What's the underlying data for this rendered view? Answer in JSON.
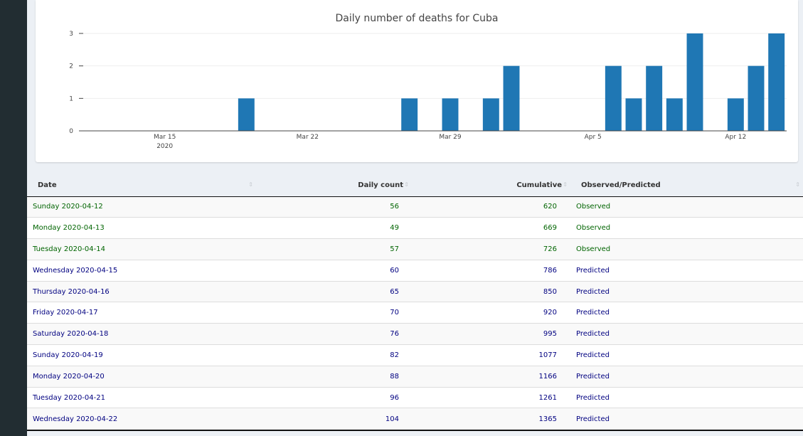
{
  "chart_data": {
    "type": "bar",
    "title": "Daily number of deaths for Cuba",
    "x_start_date": "2020-03-11",
    "x_end_date": "2020-04-14",
    "dates": [
      "2020-03-19",
      "2020-03-27",
      "2020-03-29",
      "2020-03-31",
      "2020-04-01",
      "2020-04-06",
      "2020-04-07",
      "2020-04-08",
      "2020-04-09",
      "2020-04-10",
      "2020-04-12",
      "2020-04-13",
      "2020-04-14"
    ],
    "values": [
      1,
      1,
      1,
      1,
      2,
      2,
      1,
      2,
      1,
      3,
      1,
      2,
      3
    ],
    "x_ticks": [
      {
        "date": "2020-03-15",
        "label": "Mar 15",
        "sublabel": "2020"
      },
      {
        "date": "2020-03-22",
        "label": "Mar 22",
        "sublabel": ""
      },
      {
        "date": "2020-03-29",
        "label": "Mar 29",
        "sublabel": ""
      },
      {
        "date": "2020-04-05",
        "label": "Apr 5",
        "sublabel": ""
      },
      {
        "date": "2020-04-12",
        "label": "Apr 12",
        "sublabel": ""
      }
    ],
    "y_ticks": [
      0,
      1,
      2,
      3
    ],
    "ylim": [
      0,
      3
    ],
    "bar_color": "#1f77b4",
    "grid": true,
    "legend": false
  },
  "table": {
    "columns": [
      {
        "label": "Date"
      },
      {
        "label": "Daily count"
      },
      {
        "label": "Cumulative"
      },
      {
        "label": "Observed/Predicted"
      }
    ],
    "sort_icon": "sort-arrows-icon",
    "rows": [
      {
        "date": "Sunday 2020-04-12",
        "daily": "56",
        "cumulative": "620",
        "status": "Observed"
      },
      {
        "date": "Monday 2020-04-13",
        "daily": "49",
        "cumulative": "669",
        "status": "Observed"
      },
      {
        "date": "Tuesday 2020-04-14",
        "daily": "57",
        "cumulative": "726",
        "status": "Observed"
      },
      {
        "date": "Wednesday 2020-04-15",
        "daily": "60",
        "cumulative": "786",
        "status": "Predicted"
      },
      {
        "date": "Thursday 2020-04-16",
        "daily": "65",
        "cumulative": "850",
        "status": "Predicted"
      },
      {
        "date": "Friday 2020-04-17",
        "daily": "70",
        "cumulative": "920",
        "status": "Predicted"
      },
      {
        "date": "Saturday 2020-04-18",
        "daily": "76",
        "cumulative": "995",
        "status": "Predicted"
      },
      {
        "date": "Sunday 2020-04-19",
        "daily": "82",
        "cumulative": "1077",
        "status": "Predicted"
      },
      {
        "date": "Monday 2020-04-20",
        "daily": "88",
        "cumulative": "1166",
        "status": "Predicted"
      },
      {
        "date": "Tuesday 2020-04-21",
        "daily": "96",
        "cumulative": "1261",
        "status": "Predicted"
      },
      {
        "date": "Wednesday 2020-04-22",
        "daily": "104",
        "cumulative": "1365",
        "status": "Predicted"
      }
    ],
    "colors": {
      "observed": "#006400",
      "predicted": "#000080"
    }
  }
}
